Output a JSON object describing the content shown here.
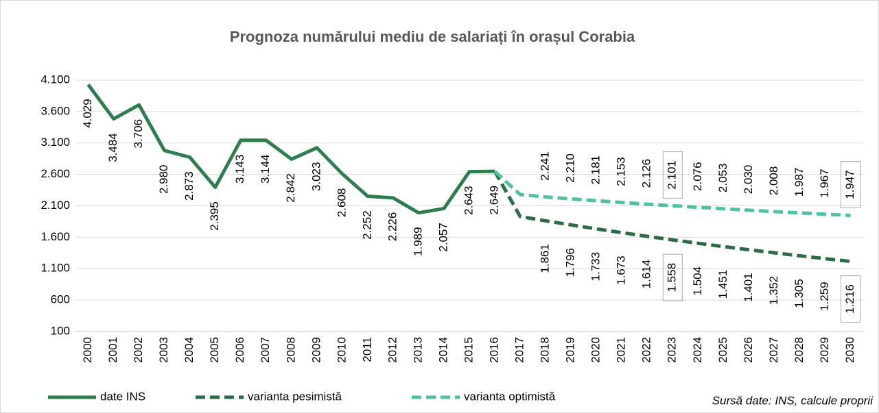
{
  "chart_data": {
    "type": "line",
    "title": "Prognoza numărului mediu de salariați în orașul Corabia",
    "source": "Sursă date: INS, calcule proprii",
    "categories": [
      "2000",
      "2001",
      "2002",
      "2003",
      "2004",
      "2005",
      "2006",
      "2007",
      "2008",
      "2009",
      "2010",
      "2011",
      "2012",
      "2013",
      "2014",
      "2015",
      "2016",
      "2017",
      "2018",
      "2019",
      "2020",
      "2021",
      "2022",
      "2023",
      "2024",
      "2025",
      "2026",
      "2027",
      "2028",
      "2029",
      "2030"
    ],
    "ylim": [
      100,
      4100
    ],
    "yticks": [
      100,
      600,
      {
        "value": 1100,
        "label": "1.100"
      },
      {
        "value": 1600,
        "label": "1.600"
      },
      {
        "value": 2100,
        "label": "2.100"
      },
      {
        "value": 2600,
        "label": "2.600"
      },
      {
        "value": 3100,
        "label": "3.100"
      },
      {
        "value": 3600,
        "label": "3.600"
      },
      {
        "value": 4100,
        "label": "4.100"
      }
    ],
    "grid": true,
    "legend": "bottom",
    "boxed_labels": [
      23,
      30
    ],
    "series": [
      {
        "name": "date INS",
        "color": "#2e7d4f",
        "dash": false,
        "label_color": "#000000",
        "label_side": "below",
        "values": [
          4029,
          3484,
          3706,
          2980,
          2873,
          2395,
          3143,
          3144,
          2842,
          3023,
          2608,
          2252,
          2226,
          1989,
          2057,
          2643,
          2649,
          null,
          null,
          null,
          null,
          null,
          null,
          null,
          null,
          null,
          null,
          null,
          null,
          null,
          null
        ],
        "value_labels": [
          "4.029",
          "3.484",
          "3.706",
          "2.980",
          "2.873",
          "2.395",
          "3.143",
          "3.144",
          "2.842",
          "3.023",
          "2.608",
          "2.252",
          "2.226",
          "1.989",
          "2.057",
          "2.643",
          "2.649",
          null,
          null,
          null,
          null,
          null,
          null,
          null,
          null,
          null,
          null,
          null,
          null,
          null,
          null
        ]
      },
      {
        "name": "varianta pesimistă",
        "color": "#2b6b45",
        "dash": true,
        "label_color": "#3d8c5c",
        "label_side": "below",
        "values": [
          null,
          null,
          null,
          null,
          null,
          null,
          null,
          null,
          null,
          null,
          null,
          null,
          null,
          null,
          null,
          null,
          2649,
          1930,
          1861,
          1796,
          1733,
          1673,
          1614,
          1558,
          1504,
          1451,
          1401,
          1352,
          1305,
          1259,
          1216
        ],
        "value_labels": [
          null,
          null,
          null,
          null,
          null,
          null,
          null,
          null,
          null,
          null,
          null,
          null,
          null,
          null,
          null,
          null,
          null,
          null,
          "1.861",
          "1.796",
          "1.733",
          "1.673",
          "1.614",
          "1.558",
          "1.504",
          "1.451",
          "1.401",
          "1.352",
          "1.305",
          "1.259",
          "1.216"
        ]
      },
      {
        "name": "varianta optimistă",
        "color": "#4cc2a2",
        "dash": true,
        "label_color": "#3d8c5c",
        "label_side": "above",
        "values": [
          null,
          null,
          null,
          null,
          null,
          null,
          null,
          null,
          null,
          null,
          null,
          null,
          null,
          null,
          null,
          null,
          2649,
          2280,
          2241,
          2210,
          2181,
          2153,
          2126,
          2101,
          2076,
          2053,
          2030,
          2008,
          1987,
          1967,
          1947
        ],
        "value_labels": [
          null,
          null,
          null,
          null,
          null,
          null,
          null,
          null,
          null,
          null,
          null,
          null,
          null,
          null,
          null,
          null,
          null,
          null,
          "2.241",
          "2.210",
          "2.181",
          "2.153",
          "2.126",
          "2.101",
          "2.076",
          "2.053",
          "2.030",
          "2.008",
          "1.987",
          "1.967",
          "1.947"
        ]
      }
    ]
  }
}
